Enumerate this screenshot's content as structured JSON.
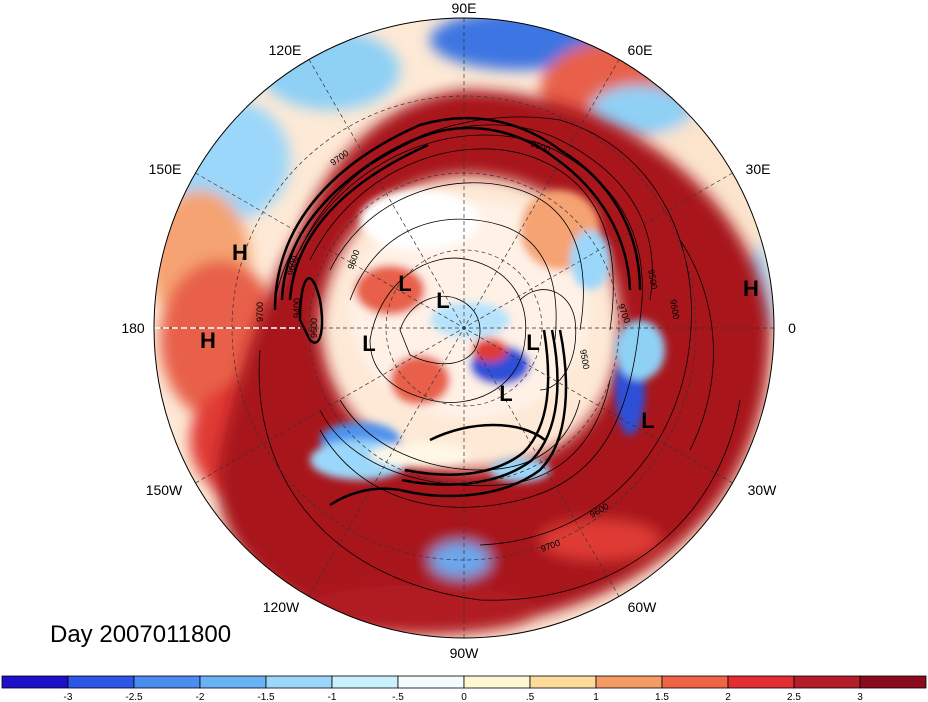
{
  "title": "Day 2007011800",
  "longitude_labels": [
    "90E",
    "60E",
    "30E",
    "0",
    "30W",
    "60W",
    "90W",
    "120W",
    "150W",
    "180",
    "150E",
    "120E"
  ],
  "pressure_systems": [
    {
      "type": "H",
      "label": "H"
    },
    {
      "type": "H",
      "label": "H"
    },
    {
      "type": "H",
      "label": "H"
    },
    {
      "type": "L",
      "label": "L"
    },
    {
      "type": "L",
      "label": "L"
    },
    {
      "type": "L",
      "label": "L"
    },
    {
      "type": "L",
      "label": "L"
    },
    {
      "type": "L",
      "label": "L"
    },
    {
      "type": "L",
      "label": "L"
    }
  ],
  "contour_labels": [
    "9700",
    "9700",
    "9600",
    "9600",
    "9500",
    "9500",
    "9400",
    "9600",
    "9700",
    "9600",
    "9700",
    "9600",
    "9500"
  ],
  "colorbar": {
    "colors": [
      "#1e0fc8",
      "#2d55e6",
      "#4b8cf0",
      "#69b2f5",
      "#9bd7fa",
      "#c9f0fd",
      "#f3fbff",
      "#fff6d2",
      "#fddc9b",
      "#f59b64",
      "#ef6446",
      "#e32d32",
      "#b41e28",
      "#8c0a1e"
    ],
    "tick_labels": [
      "-3",
      "-2.5",
      "-2",
      "-1.5",
      "-1",
      "-.5",
      "0",
      ".5",
      "1",
      "1.5",
      "2",
      "2.5",
      "3"
    ]
  },
  "colors": {
    "strong_positive": "#a8121f",
    "positive": "#e03a34",
    "weak_positive": "#f5a372",
    "neutral": "#fff8e6",
    "weak_negative": "#b6e3fb",
    "negative": "#4f93ee",
    "strong_negative": "#1e2fc8"
  }
}
